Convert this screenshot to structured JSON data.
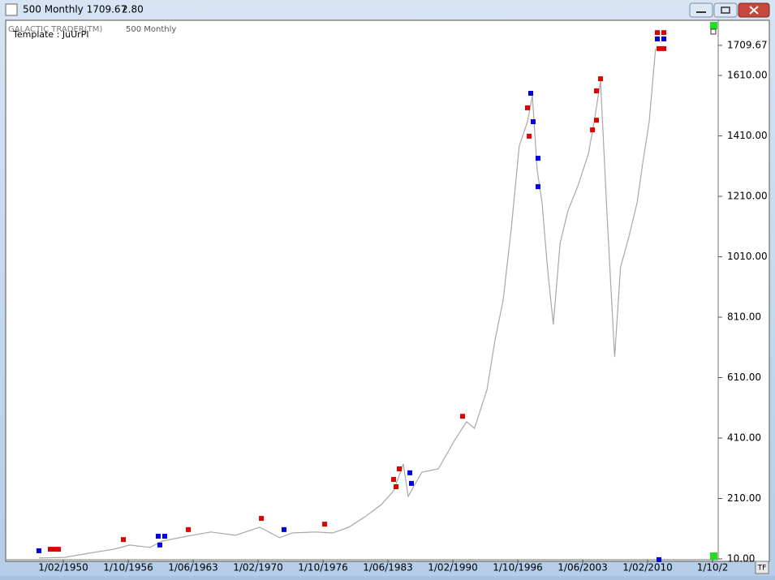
{
  "window": {
    "title": "500 Monthly 1709.67",
    "change": "2.80",
    "tf_button": "TF"
  },
  "chart_data": {
    "type": "line",
    "header": "GALACTIC TRADER(TM)",
    "title": "500 Monthly",
    "template": "Template : JuUrPl",
    "xlim": [
      1944.25,
      2017.33
    ],
    "ylim": [
      7.3,
      1790.0
    ],
    "xticks": [
      {
        "value": 1950.083,
        "label": "1/02/1950"
      },
      {
        "value": 1956.75,
        "label": "1/10/1956"
      },
      {
        "value": 1963.417,
        "label": "1/06/1963"
      },
      {
        "value": 1970.083,
        "label": "1/02/1970"
      },
      {
        "value": 1976.75,
        "label": "1/10/1976"
      },
      {
        "value": 1983.417,
        "label": "1/06/1983"
      },
      {
        "value": 1990.083,
        "label": "1/02/1990"
      },
      {
        "value": 1996.75,
        "label": "1/10/1996"
      },
      {
        "value": 2003.417,
        "label": "1/06/2003"
      },
      {
        "value": 2010.083,
        "label": "1/02/2010"
      },
      {
        "value": 2016.75,
        "label": "1/10/2"
      }
    ],
    "yticks": [
      1709.67,
      {
        "value": 1610,
        "label": "1610.00"
      },
      {
        "value": 1410,
        "label": "1410.00"
      },
      {
        "value": 1210,
        "label": "1210.00"
      },
      {
        "value": 1010,
        "label": "1010.00"
      },
      {
        "value": 810,
        "label": "810.00"
      },
      {
        "value": 610,
        "label": "610.00"
      },
      {
        "value": 410,
        "label": "410.00"
      },
      {
        "value": 210,
        "label": "210.00"
      },
      {
        "value": 10,
        "label": "10.00"
      }
    ],
    "series": [
      {
        "color": "#a8a8a8",
        "x": [
          1947.6,
          1950.25,
          1952.75,
          1955.25,
          1956.9,
          1959,
          1960.25,
          1962.75,
          1965.25,
          1967.75,
          1970.25,
          1972.3,
          1973.6,
          1976,
          1977.75,
          1979.4,
          1981.1,
          1982.75,
          1984,
          1985,
          1985.5,
          1986.9,
          1988.6,
          1990.25,
          1991.5,
          1992.3,
          1993.6,
          1994.4,
          1995.25,
          1996.1,
          1996.9,
          1997.75,
          1998.25,
          1998.75,
          1999.25,
          1999.8,
          2000.4,
          2001.1,
          2001.9,
          2002.9,
          2004,
          2004.6,
          2005.25,
          2005.9,
          2006.7,
          2007.3,
          2008.2,
          2009,
          2009.6,
          2010.25,
          2010.9
        ],
        "values": [
          13,
          15,
          29,
          42,
          56,
          48,
          69,
          85,
          99,
          88,
          115,
          80,
          96,
          99,
          96,
          115,
          150,
          190,
          235,
          324,
          217,
          297,
          308,
          402,
          464,
          442,
          571,
          732,
          866,
          1108,
          1376,
          1457,
          1543,
          1296,
          1188,
          974,
          786,
          1054,
          1162,
          1242,
          1350,
          1457,
          1591,
          1162,
          678,
          974,
          1081,
          1188,
          1323,
          1457,
          1699
        ]
      }
    ],
    "signals": [
      {
        "color": "#e00000",
        "x": [
          1948.75,
          1949.25,
          1949.58,
          1956.25,
          1962.92,
          1970.42,
          1976.92,
          1984.0,
          1984.25,
          1984.58,
          1991.08,
          1997.75,
          1997.92,
          2004.42,
          2004.83,
          2004.83,
          2005.25,
          2011.08,
          2011.75,
          2011.25,
          2011.75
        ],
        "values": [
          42,
          42,
          42,
          74,
          107,
          144,
          125,
          273,
          249,
          308,
          482,
          1503,
          1409,
          1430,
          1462,
          1559,
          1599,
          1752,
          1752,
          1699,
          1699
        ]
      },
      {
        "color": "#0000e0",
        "x": [
          1947.58,
          1959.83,
          1960.5,
          1960.0,
          1972.75,
          1985.67,
          1985.83,
          1998.08,
          1998.33,
          1998.83,
          1998.83,
          2011.08,
          2011.75,
          2011.25
        ],
        "values": [
          37,
          85,
          85,
          56,
          107,
          295,
          260,
          1551,
          1457,
          1336,
          1242,
          1731,
          1731,
          7.5
        ]
      }
    ]
  }
}
